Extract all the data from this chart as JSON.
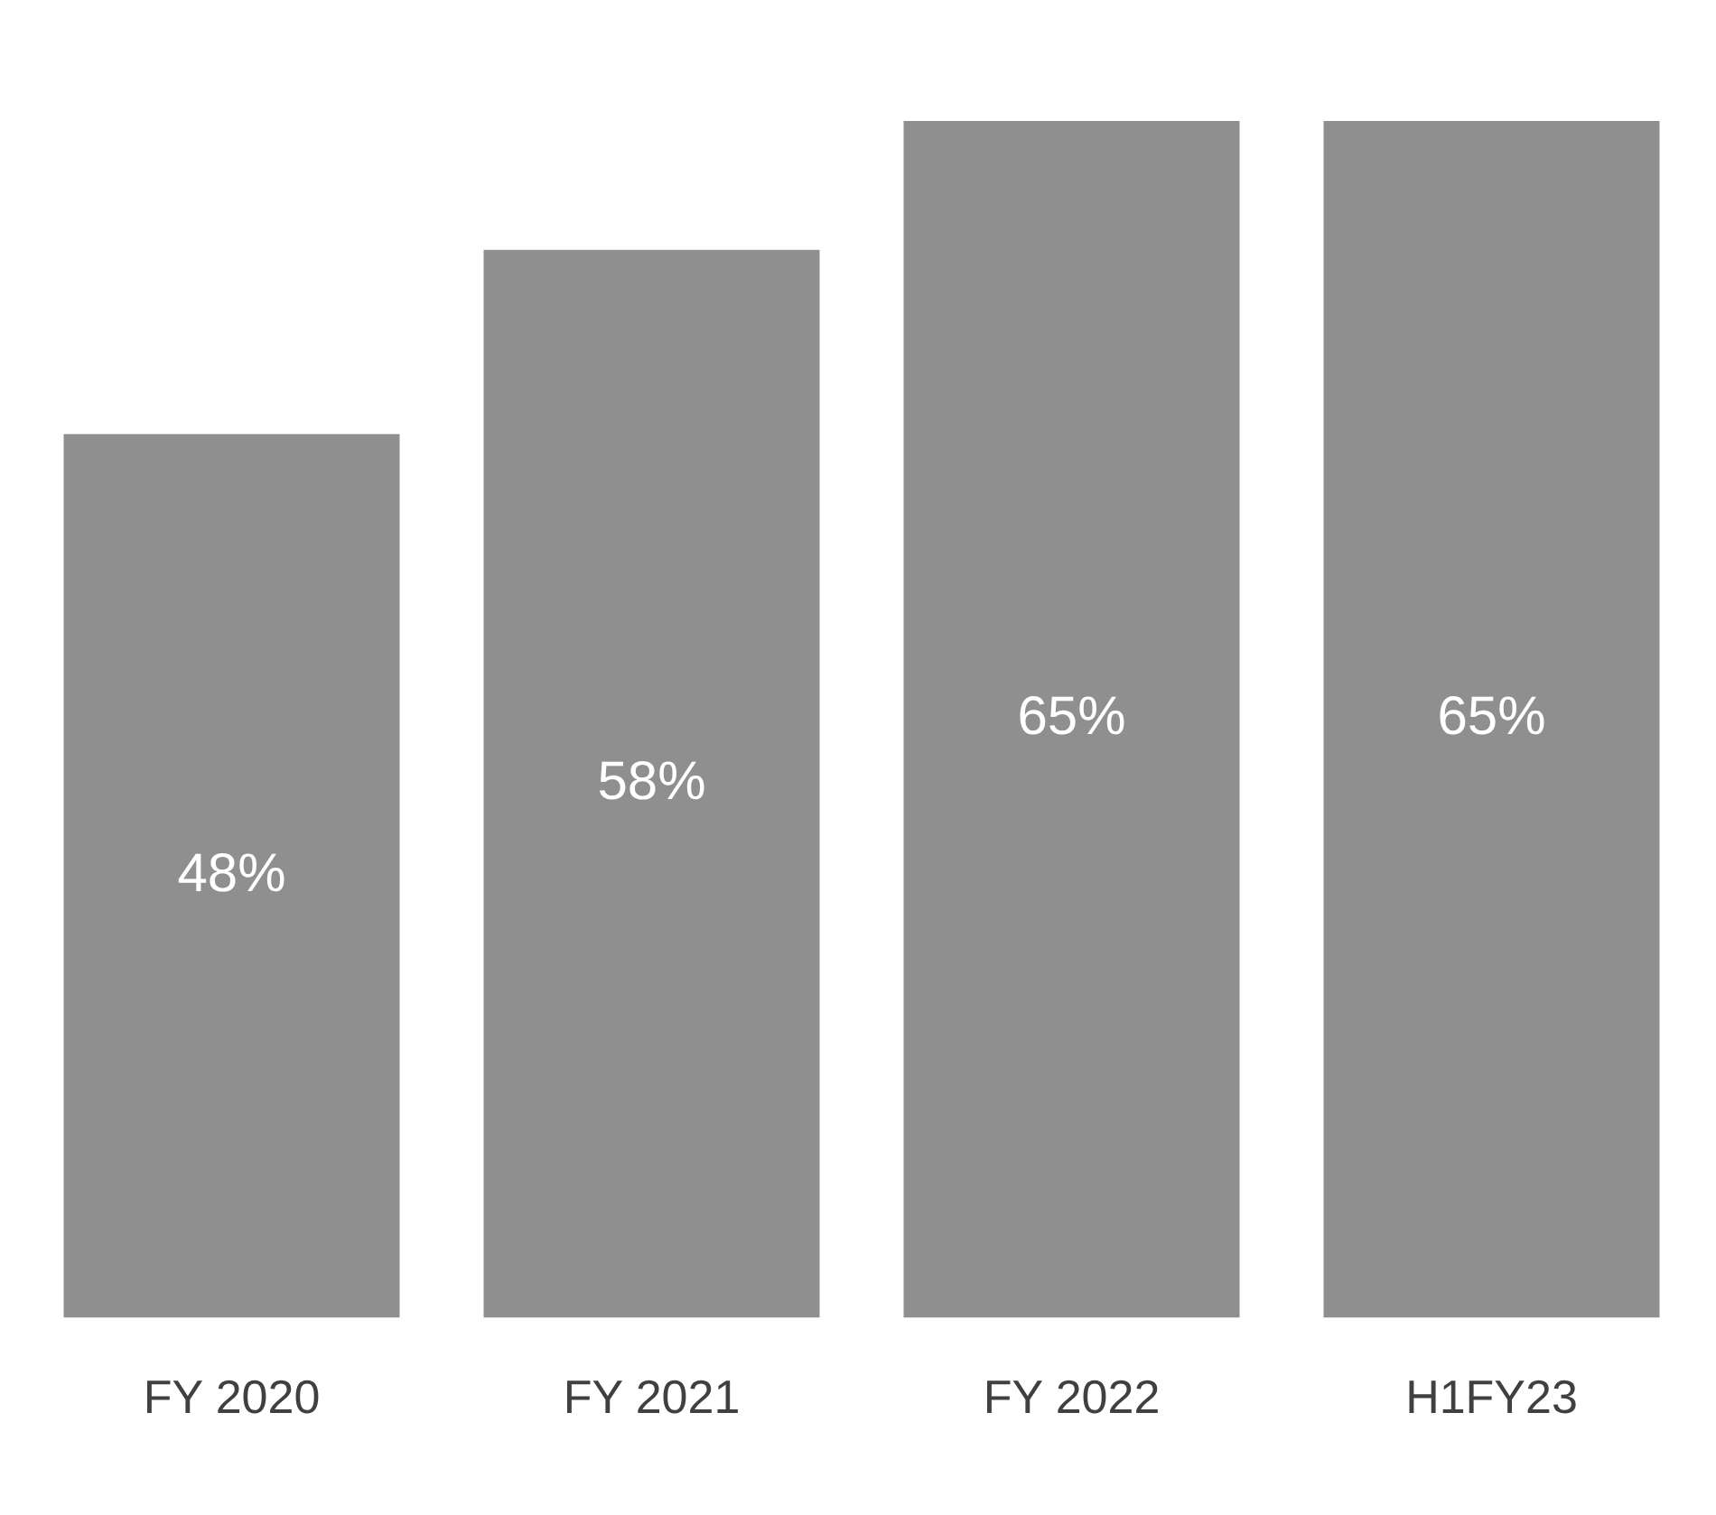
{
  "chart_data": {
    "type": "bar",
    "categories": [
      "FY 2020",
      "FY 2021",
      "FY 2022",
      "H1FY23"
    ],
    "values": [
      48,
      58,
      65,
      65
    ],
    "color": "#8f8f8f",
    "value_labels": [
      "48%",
      "58%",
      "65%",
      "65%"
    ],
    "grid": false,
    "legend": false
  }
}
